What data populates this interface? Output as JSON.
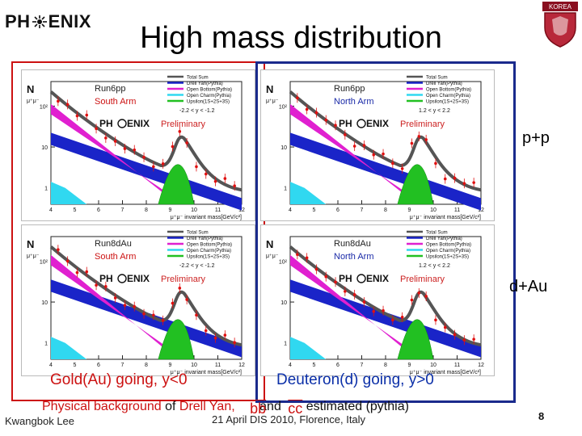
{
  "header": {
    "logo_left": "PH",
    "logo_right": "ENIX",
    "title": "High mass distribution",
    "crest_text": "KOREA"
  },
  "panel_common": {
    "y_axis_label": "N",
    "y_axis_sub": "μ⁺μ⁻",
    "y_ticks": [
      "10²",
      "10",
      "1"
    ],
    "x_ticks": [
      "4",
      "5",
      "6",
      "7",
      "8",
      "9",
      "10",
      "11",
      "12"
    ],
    "x_axis_label": "μ⁺μ⁻ invariant mass[GeV/c²]",
    "prelim_logo_left": "PH",
    "prelim_logo_right": "ENIX",
    "prelim_word": "Preliminary",
    "legend": [
      {
        "label": "Total Sum",
        "color": "#555555"
      },
      {
        "label": "Drell Yan(Pythia)",
        "color": "#1a24c8"
      },
      {
        "label": "Open Bottom(Pythia)",
        "color": "#e020d0"
      },
      {
        "label": "Open Charm(Pythia)",
        "color": "#30d8f0"
      },
      {
        "label": "Upsilon(1S+2S+3S)",
        "color": "#22c022"
      }
    ]
  },
  "panels": [
    {
      "run": "Run6pp",
      "arm": "South Arm",
      "rapidity": "-2.2 < y < -1.2",
      "arm_color": "#cc1111"
    },
    {
      "run": "Run6pp",
      "arm": "North Arm",
      "rapidity": "1.2 < y < 2.2",
      "arm_color": "#1a2aa8"
    },
    {
      "run": "Run8dAu",
      "arm": "South Arm",
      "rapidity": "-2.2 < y < -1.2",
      "arm_color": "#cc1111"
    },
    {
      "run": "Run8dAu",
      "arm": "North Arm",
      "rapidity": "1.2 < y < 2.2",
      "arm_color": "#1a2aa8"
    }
  ],
  "side_labels": {
    "top": "p+p",
    "bottom": "d+Au"
  },
  "captions": {
    "left": "Gold(Au) going, y<0",
    "right": "Deuteron(d) going, y>0"
  },
  "physics_line": {
    "prefix": "Physical background ",
    "of": "of",
    "drell": " Drell Yan,",
    "bb": "bb",
    "and": "and",
    "cc": "cc",
    "suffix": "estimated (pythia)"
  },
  "footer": {
    "author": "Kwangbok Lee",
    "event": "21 April DIS 2010, Florence, Italy",
    "page": "8"
  },
  "colors": {
    "red": "#cc1111",
    "blue": "#0b2fa8",
    "data": "#e01010",
    "total": "#555555"
  }
}
